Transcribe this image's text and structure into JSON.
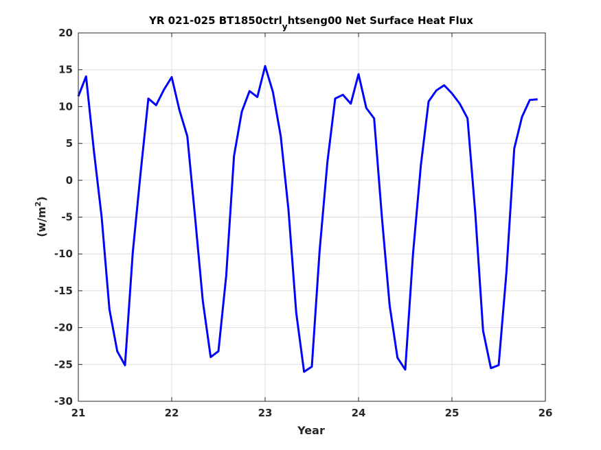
{
  "chart_data": {
    "type": "line",
    "title": {
      "main": "YR 021-025 BT1850ctrl",
      "subscript": "y",
      "rest": "htseng00 Net Surface Heat Flux"
    },
    "xlabel": "Year",
    "ylabel": {
      "prefix": "(w/m",
      "superscript": "2",
      "suffix": ")"
    },
    "xlim": [
      21,
      26
    ],
    "ylim": [
      -30,
      20
    ],
    "xticks": [
      "21",
      "22",
      "23",
      "24",
      "25",
      "26"
    ],
    "yticks": [
      "20",
      "15",
      "10",
      "5",
      "0",
      "-5",
      "-10",
      "-15",
      "-20",
      "-25",
      "-30"
    ],
    "grid": true,
    "series_color": "#0000ff",
    "series": [
      {
        "x": [
          21.0,
          21.083,
          21.167,
          21.25,
          21.333,
          21.417,
          21.5,
          21.583,
          21.667,
          21.75,
          21.833,
          21.917,
          22.0,
          22.083,
          22.167,
          22.25,
          22.333,
          22.417,
          22.5,
          22.583,
          22.667,
          22.75,
          22.833,
          22.917,
          23.0,
          23.083,
          23.167,
          23.25,
          23.333,
          23.417,
          23.5,
          23.583,
          23.667,
          23.75,
          23.833,
          23.917,
          24.0,
          24.083,
          24.167,
          24.25,
          24.333,
          24.417,
          24.5,
          24.583,
          24.667,
          24.75,
          24.833,
          24.917,
          25.0,
          25.083,
          25.167,
          25.25,
          25.333,
          25.417,
          25.5,
          25.583,
          25.667,
          25.75,
          25.833,
          25.917
        ],
        "values": [
          11.4,
          14.1,
          4.0,
          -5.0,
          -17.5,
          -23.2,
          -25.1,
          -9.8,
          1.0,
          11.1,
          10.2,
          12.3,
          14.0,
          9.5,
          6.0,
          -5.0,
          -16.4,
          -24.0,
          -23.2,
          -13.0,
          3.3,
          9.3,
          12.1,
          11.3,
          15.5,
          12.0,
          6.0,
          -4.0,
          -18.0,
          -26.0,
          -25.3,
          -9.6,
          2.5,
          11.1,
          11.6,
          10.4,
          14.4,
          9.8,
          8.4,
          -5.0,
          -17.0,
          -24.1,
          -25.7,
          -10.0,
          2.0,
          10.7,
          12.2,
          12.9,
          11.8,
          10.4,
          8.4,
          -4.5,
          -20.4,
          -25.5,
          -25.1,
          -12.5,
          4.3,
          8.6,
          10.9,
          11.0
        ]
      }
    ]
  }
}
